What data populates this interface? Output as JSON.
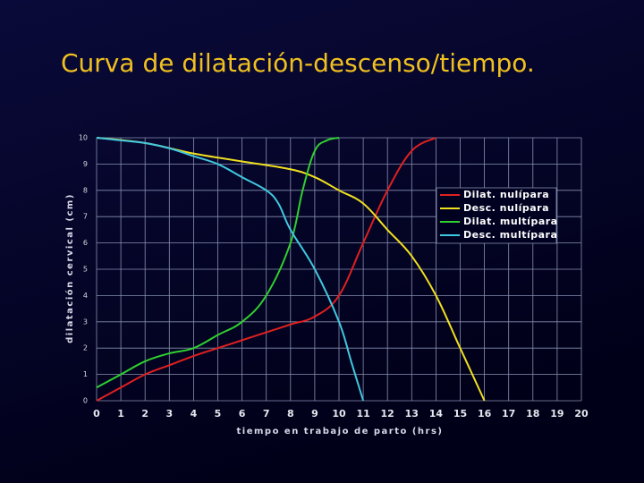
{
  "chart_data": {
    "type": "line",
    "title": "Curva de dilatación-descenso/tiempo.",
    "xlabel": "tiempo en trabajo de parto (hrs)",
    "ylabel": "dilatación cervical (cm)",
    "xlim": [
      0,
      20
    ],
    "ylim": [
      0,
      10
    ],
    "xticks": [
      0,
      1,
      2,
      3,
      4,
      5,
      6,
      7,
      8,
      9,
      10,
      11,
      12,
      13,
      14,
      15,
      16,
      17,
      18,
      19,
      20
    ],
    "yticks": [
      0,
      1,
      2,
      3,
      4,
      5,
      6,
      7,
      8,
      9,
      10
    ],
    "grid": true,
    "legend": "right",
    "series": [
      {
        "name": "Dilat. nulípara",
        "color": "#e02020",
        "x": [
          0,
          1,
          2,
          3,
          4,
          5,
          6,
          7,
          8,
          9,
          10,
          11,
          12,
          13,
          14
        ],
        "values": [
          0,
          0.5,
          1,
          1.35,
          1.7,
          2,
          2.3,
          2.6,
          2.9,
          3.2,
          4,
          6,
          8,
          9.5,
          10
        ]
      },
      {
        "name": "Desc. nulípara",
        "color": "#f0e020",
        "x": [
          0,
          2,
          4,
          6,
          8,
          9,
          10,
          11,
          12,
          13,
          14,
          15,
          16
        ],
        "values": [
          10,
          9.8,
          9.4,
          9.1,
          8.8,
          8.5,
          8,
          7.5,
          6.5,
          5.5,
          4,
          2,
          0
        ]
      },
      {
        "name": "Dilat. multípara",
        "color": "#30d030",
        "x": [
          0,
          1,
          2,
          3,
          4,
          5,
          6,
          7,
          8,
          8.5,
          9,
          9.5,
          10
        ],
        "values": [
          0.5,
          1,
          1.5,
          1.8,
          2,
          2.5,
          3,
          4,
          6,
          8,
          9.5,
          9.9,
          10
        ]
      },
      {
        "name": "Desc. multípara",
        "color": "#40c8e0",
        "x": [
          0,
          1,
          2,
          3,
          4,
          5,
          6,
          7,
          7.5,
          8,
          9,
          10,
          10.5,
          11
        ],
        "values": [
          10,
          9.9,
          9.8,
          9.6,
          9.3,
          9,
          8.5,
          8,
          7.5,
          6.5,
          5,
          3,
          1.5,
          0
        ]
      }
    ]
  }
}
